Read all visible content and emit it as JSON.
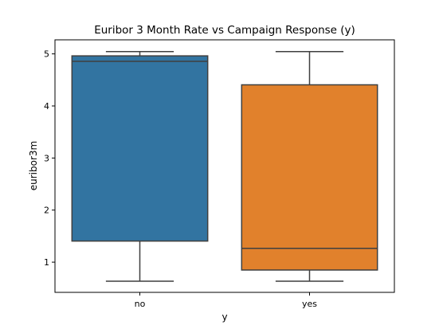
{
  "chart_data": {
    "type": "box",
    "title": "Euribor 3 Month Rate vs Campaign Response (y)",
    "xlabel": "y",
    "ylabel": "euribor3m",
    "ylim": [
      0.42,
      5.27
    ],
    "y_ticks": [
      1,
      2,
      3,
      4,
      5
    ],
    "grid": false,
    "categories": [
      "no",
      "yes"
    ],
    "boxes": [
      {
        "category": "no",
        "color": "#3274a1",
        "whisker_low": 0.634,
        "q1": 1.405,
        "median": 4.857,
        "q3": 4.962,
        "whisker_high": 5.045
      },
      {
        "category": "yes",
        "color": "#e1812c",
        "whisker_low": 0.634,
        "q1": 0.849,
        "median": 1.266,
        "q3": 4.406,
        "whisker_high": 5.045
      }
    ]
  }
}
